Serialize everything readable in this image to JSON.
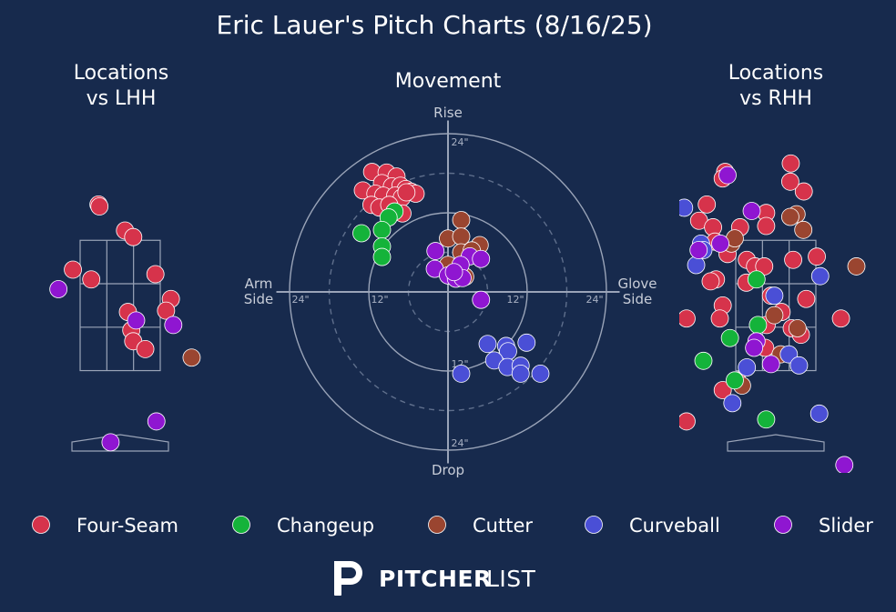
{
  "title": "Eric Lauer's Pitch Charts (8/16/25)",
  "colors": {
    "background": "#172a4d",
    "grid": "#9aa4b8",
    "Four-Seam": "#d6334b",
    "Changeup": "#14b33a",
    "Cutter": "#9a4530",
    "Curveball": "#4a4fd6",
    "Slider": "#8f16d1"
  },
  "legend": [
    "Four-Seam",
    "Changeup",
    "Cutter",
    "Curveball",
    "Slider"
  ],
  "logo": {
    "text_bold": "PITCHER",
    "text_light": "LIST"
  },
  "chart_data": [
    {
      "type": "scatter",
      "title_lines": [
        "Locations",
        "vs LHH"
      ],
      "xlabel": "",
      "ylabel": "",
      "xlim": [
        -2.0,
        2.0
      ],
      "ylim": [
        0.0,
        5.5
      ],
      "strike_zone": {
        "x": [
          -0.83,
          0.83
        ],
        "z": [
          1.5,
          3.5
        ]
      },
      "points": [
        {
          "pitch": "Four-Seam",
          "x": -0.45,
          "z": 4.05
        },
        {
          "pitch": "Four-Seam",
          "x": -0.43,
          "z": 4.02
        },
        {
          "pitch": "Four-Seam",
          "x": 0.1,
          "z": 3.65
        },
        {
          "pitch": "Four-Seam",
          "x": 0.27,
          "z": 3.55
        },
        {
          "pitch": "Four-Seam",
          "x": -0.98,
          "z": 3.05
        },
        {
          "pitch": "Four-Seam",
          "x": -0.6,
          "z": 2.9
        },
        {
          "pitch": "Four-Seam",
          "x": 0.73,
          "z": 2.98
        },
        {
          "pitch": "Four-Seam",
          "x": 1.05,
          "z": 2.6
        },
        {
          "pitch": "Four-Seam",
          "x": 0.16,
          "z": 2.4
        },
        {
          "pitch": "Four-Seam",
          "x": 0.95,
          "z": 2.42
        },
        {
          "pitch": "Four-Seam",
          "x": 0.23,
          "z": 2.12
        },
        {
          "pitch": "Four-Seam",
          "x": 0.27,
          "z": 1.95
        },
        {
          "pitch": "Four-Seam",
          "x": 0.52,
          "z": 1.83
        },
        {
          "pitch": "Cutter",
          "x": 1.48,
          "z": 1.7
        },
        {
          "pitch": "Slider",
          "x": -1.28,
          "z": 2.75
        },
        {
          "pitch": "Slider",
          "x": 0.33,
          "z": 2.27
        },
        {
          "pitch": "Slider",
          "x": 1.1,
          "z": 2.2
        },
        {
          "pitch": "Slider",
          "x": 0.75,
          "z": 0.72
        },
        {
          "pitch": "Slider",
          "x": -0.2,
          "z": 0.4
        }
      ]
    },
    {
      "type": "scatter",
      "title": "Movement",
      "xlabel": "",
      "ylabel": "",
      "axis_labels": {
        "top": "Rise",
        "bottom": "Drop",
        "left": [
          "Arm",
          "Side"
        ],
        "right": [
          "Glove",
          "Side"
        ]
      },
      "xlim": [
        -24,
        24
      ],
      "ylim": [
        -24,
        24
      ],
      "rings": [
        {
          "r": 6,
          "style": "dashed"
        },
        {
          "r": 12,
          "style": "solid"
        },
        {
          "r": 18,
          "style": "dashed"
        },
        {
          "r": 24,
          "style": "solid"
        }
      ],
      "ring_labels": {
        "left_24": "24\"",
        "left_12": "12\"",
        "right_12": "12\"",
        "right_24": "24\"",
        "top_24": "24\"",
        "bottom_12": "12\"",
        "bottom_24": "24\""
      },
      "points": [
        {
          "pitch": "Four-Seam",
          "x": -11.5,
          "y": 18.2
        },
        {
          "pitch": "Four-Seam",
          "x": -9.3,
          "y": 18.1
        },
        {
          "pitch": "Four-Seam",
          "x": -7.8,
          "y": 17.5
        },
        {
          "pitch": "Four-Seam",
          "x": -10.0,
          "y": 16.5
        },
        {
          "pitch": "Four-Seam",
          "x": -8.5,
          "y": 16.0
        },
        {
          "pitch": "Four-Seam",
          "x": -7.2,
          "y": 16.1
        },
        {
          "pitch": "Four-Seam",
          "x": -6.4,
          "y": 15.6
        },
        {
          "pitch": "Four-Seam",
          "x": -5.6,
          "y": 15.2
        },
        {
          "pitch": "Four-Seam",
          "x": -4.9,
          "y": 14.9
        },
        {
          "pitch": "Four-Seam",
          "x": -12.9,
          "y": 15.4
        },
        {
          "pitch": "Four-Seam",
          "x": -11.0,
          "y": 14.9
        },
        {
          "pitch": "Four-Seam",
          "x": -9.8,
          "y": 14.6
        },
        {
          "pitch": "Four-Seam",
          "x": -8.0,
          "y": 14.6
        },
        {
          "pitch": "Four-Seam",
          "x": -7.0,
          "y": 14.3
        },
        {
          "pitch": "Four-Seam",
          "x": -6.3,
          "y": 15.1
        },
        {
          "pitch": "Four-Seam",
          "x": -11.6,
          "y": 13.2
        },
        {
          "pitch": "Four-Seam",
          "x": -10.4,
          "y": 12.8
        },
        {
          "pitch": "Four-Seam",
          "x": -8.9,
          "y": 13.2
        },
        {
          "pitch": "Four-Seam",
          "x": -6.9,
          "y": 11.9
        },
        {
          "pitch": "Changeup",
          "x": -8.1,
          "y": 12.2
        },
        {
          "pitch": "Changeup",
          "x": -9.0,
          "y": 11.3
        },
        {
          "pitch": "Changeup",
          "x": -13.1,
          "y": 8.9
        },
        {
          "pitch": "Changeup",
          "x": -10.0,
          "y": 9.4
        },
        {
          "pitch": "Changeup",
          "x": -10.0,
          "y": 6.9
        },
        {
          "pitch": "Changeup",
          "x": -10.0,
          "y": 5.3
        },
        {
          "pitch": "Cutter",
          "x": 2.0,
          "y": 10.9
        },
        {
          "pitch": "Cutter",
          "x": 0.0,
          "y": 8.1
        },
        {
          "pitch": "Cutter",
          "x": 2.0,
          "y": 8.4
        },
        {
          "pitch": "Cutter",
          "x": 4.8,
          "y": 7.1
        },
        {
          "pitch": "Cutter",
          "x": 2.0,
          "y": 6.0
        },
        {
          "pitch": "Cutter",
          "x": 3.6,
          "y": 6.3
        },
        {
          "pitch": "Cutter",
          "x": 0.0,
          "y": 4.1
        },
        {
          "pitch": "Cutter",
          "x": 1.8,
          "y": 3.5
        },
        {
          "pitch": "Cutter",
          "x": 2.6,
          "y": 2.3
        },
        {
          "pitch": "Slider",
          "x": -1.9,
          "y": 6.2
        },
        {
          "pitch": "Slider",
          "x": 3.3,
          "y": 5.4
        },
        {
          "pitch": "Slider",
          "x": 5.0,
          "y": 5.0
        },
        {
          "pitch": "Slider",
          "x": -2.0,
          "y": 3.5
        },
        {
          "pitch": "Slider",
          "x": 1.9,
          "y": 4.1
        },
        {
          "pitch": "Slider",
          "x": 0.0,
          "y": 2.5
        },
        {
          "pitch": "Slider",
          "x": 1.2,
          "y": 2.0
        },
        {
          "pitch": "Slider",
          "x": 2.2,
          "y": 2.1
        },
        {
          "pitch": "Slider",
          "x": 0.9,
          "y": 3.0
        },
        {
          "pitch": "Slider",
          "x": 5.0,
          "y": -1.2
        },
        {
          "pitch": "Curveball",
          "x": 6.0,
          "y": -7.9
        },
        {
          "pitch": "Curveball",
          "x": 8.8,
          "y": -8.2
        },
        {
          "pitch": "Curveball",
          "x": 11.9,
          "y": -7.7
        },
        {
          "pitch": "Curveball",
          "x": 9.1,
          "y": -9.0
        },
        {
          "pitch": "Curveball",
          "x": 7.0,
          "y": -10.4
        },
        {
          "pitch": "Curveball",
          "x": 9.0,
          "y": -11.4
        },
        {
          "pitch": "Curveball",
          "x": 11.0,
          "y": -11.2
        },
        {
          "pitch": "Curveball",
          "x": 11.0,
          "y": -12.4
        },
        {
          "pitch": "Curveball",
          "x": 14.0,
          "y": -12.4
        },
        {
          "pitch": "Curveball",
          "x": 2.0,
          "y": -12.4
        }
      ]
    },
    {
      "type": "scatter",
      "title_lines": [
        "Locations",
        "vs RHH"
      ],
      "xlabel": "",
      "ylabel": "",
      "xlim": [
        -2.0,
        2.0
      ],
      "ylim": [
        0.0,
        5.5
      ],
      "strike_zone": {
        "x": [
          -0.83,
          0.83
        ],
        "z": [
          1.5,
          3.5
        ]
      },
      "points": [
        {
          "pitch": "Four-Seam",
          "x": -1.05,
          "z": 4.55
        },
        {
          "pitch": "Four-Seam",
          "x": -1.1,
          "z": 4.45
        },
        {
          "pitch": "Four-Seam",
          "x": 0.31,
          "z": 4.68
        },
        {
          "pitch": "Four-Seam",
          "x": 0.58,
          "z": 4.25
        },
        {
          "pitch": "Four-Seam",
          "x": -1.43,
          "z": 4.05
        },
        {
          "pitch": "Four-Seam",
          "x": -1.59,
          "z": 3.8
        },
        {
          "pitch": "Four-Seam",
          "x": -1.3,
          "z": 3.7
        },
        {
          "pitch": "Four-Seam",
          "x": -0.74,
          "z": 3.7
        },
        {
          "pitch": "Four-Seam",
          "x": -1.26,
          "z": 3.48
        },
        {
          "pitch": "Four-Seam",
          "x": -0.2,
          "z": 3.92
        },
        {
          "pitch": "Four-Seam",
          "x": -0.2,
          "z": 3.72
        },
        {
          "pitch": "Four-Seam",
          "x": -1.0,
          "z": 3.29
        },
        {
          "pitch": "Four-Seam",
          "x": -0.6,
          "z": 3.2
        },
        {
          "pitch": "Four-Seam",
          "x": -0.43,
          "z": 3.1
        },
        {
          "pitch": "Four-Seam",
          "x": -0.24,
          "z": 3.1
        },
        {
          "pitch": "Four-Seam",
          "x": 0.36,
          "z": 3.2
        },
        {
          "pitch": "Four-Seam",
          "x": 0.85,
          "z": 3.25
        },
        {
          "pitch": "Four-Seam",
          "x": -1.24,
          "z": 2.9
        },
        {
          "pitch": "Four-Seam",
          "x": -1.35,
          "z": 2.87
        },
        {
          "pitch": "Four-Seam",
          "x": -0.61,
          "z": 2.85
        },
        {
          "pitch": "Four-Seam",
          "x": -0.1,
          "z": 2.65
        },
        {
          "pitch": "Four-Seam",
          "x": 0.63,
          "z": 2.6
        },
        {
          "pitch": "Four-Seam",
          "x": -1.1,
          "z": 2.5
        },
        {
          "pitch": "Four-Seam",
          "x": -1.85,
          "z": 2.3
        },
        {
          "pitch": "Four-Seam",
          "x": -1.16,
          "z": 2.3
        },
        {
          "pitch": "Four-Seam",
          "x": -0.19,
          "z": 2.2
        },
        {
          "pitch": "Four-Seam",
          "x": 0.12,
          "z": 2.4
        },
        {
          "pitch": "Four-Seam",
          "x": 0.33,
          "z": 2.15
        },
        {
          "pitch": "Four-Seam",
          "x": 0.52,
          "z": 2.05
        },
        {
          "pitch": "Four-Seam",
          "x": 1.35,
          "z": 2.3
        },
        {
          "pitch": "Four-Seam",
          "x": -0.22,
          "z": 1.85
        },
        {
          "pitch": "Four-Seam",
          "x": -0.8,
          "z": 1.35
        },
        {
          "pitch": "Four-Seam",
          "x": -1.1,
          "z": 1.2
        },
        {
          "pitch": "Four-Seam",
          "x": -1.85,
          "z": 0.72
        },
        {
          "pitch": "Four-Seam",
          "x": 0.3,
          "z": 4.4
        },
        {
          "pitch": "Cutter",
          "x": 0.43,
          "z": 3.9
        },
        {
          "pitch": "Cutter",
          "x": 0.3,
          "z": 3.86
        },
        {
          "pitch": "Cutter",
          "x": 0.57,
          "z": 3.66
        },
        {
          "pitch": "Cutter",
          "x": -0.92,
          "z": 3.45
        },
        {
          "pitch": "Cutter",
          "x": -0.85,
          "z": 3.53
        },
        {
          "pitch": "Cutter",
          "x": 1.67,
          "z": 3.1
        },
        {
          "pitch": "Cutter",
          "x": -0.03,
          "z": 2.35
        },
        {
          "pitch": "Cutter",
          "x": 0.45,
          "z": 2.15
        },
        {
          "pitch": "Cutter",
          "x": 0.1,
          "z": 1.75
        },
        {
          "pitch": "Cutter",
          "x": -0.7,
          "z": 1.27
        },
        {
          "pitch": "Changeup",
          "x": -0.4,
          "z": 2.9
        },
        {
          "pitch": "Changeup",
          "x": -0.37,
          "z": 2.2
        },
        {
          "pitch": "Changeup",
          "x": -0.95,
          "z": 2.0
        },
        {
          "pitch": "Changeup",
          "x": -1.5,
          "z": 1.65
        },
        {
          "pitch": "Changeup",
          "x": -0.85,
          "z": 1.35
        },
        {
          "pitch": "Changeup",
          "x": -0.2,
          "z": 0.75
        },
        {
          "pitch": "Curveball",
          "x": -1.9,
          "z": 4.0
        },
        {
          "pitch": "Curveball",
          "x": -1.55,
          "z": 3.45
        },
        {
          "pitch": "Curveball",
          "x": -1.65,
          "z": 3.12
        },
        {
          "pitch": "Curveball",
          "x": -1.5,
          "z": 3.35
        },
        {
          "pitch": "Curveball",
          "x": -0.03,
          "z": 2.65
        },
        {
          "pitch": "Curveball",
          "x": 0.92,
          "z": 2.95
        },
        {
          "pitch": "Curveball",
          "x": -0.6,
          "z": 1.55
        },
        {
          "pitch": "Curveball",
          "x": 0.27,
          "z": 1.75
        },
        {
          "pitch": "Curveball",
          "x": 0.48,
          "z": 1.58
        },
        {
          "pitch": "Curveball",
          "x": -0.9,
          "z": 1.0
        },
        {
          "pitch": "Curveball",
          "x": 0.9,
          "z": 0.84
        },
        {
          "pitch": "Slider",
          "x": -1.0,
          "z": 4.5
        },
        {
          "pitch": "Slider",
          "x": -0.5,
          "z": 3.95
        },
        {
          "pitch": "Slider",
          "x": -1.15,
          "z": 3.45
        },
        {
          "pitch": "Slider",
          "x": -1.6,
          "z": 3.35
        },
        {
          "pitch": "Slider",
          "x": -0.4,
          "z": 1.95
        },
        {
          "pitch": "Slider",
          "x": -0.1,
          "z": 1.6
        },
        {
          "pitch": "Slider",
          "x": 1.42,
          "z": 0.05
        },
        {
          "pitch": "Slider",
          "x": -0.45,
          "z": 1.85
        }
      ]
    }
  ]
}
